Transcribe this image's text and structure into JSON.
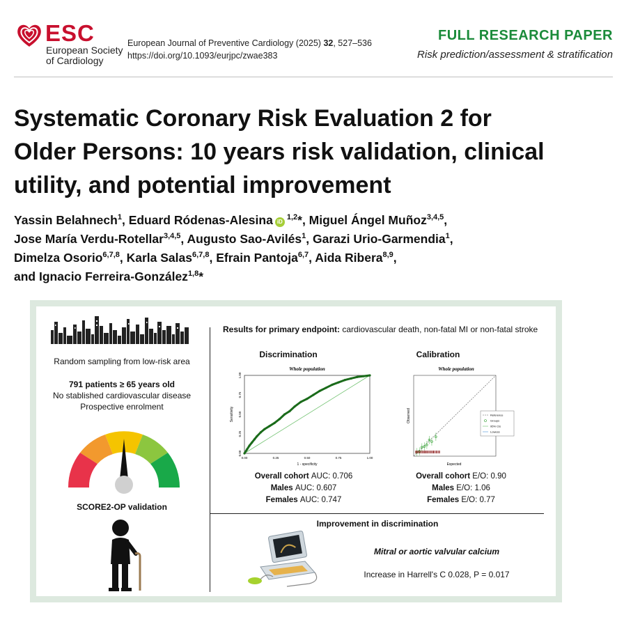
{
  "header": {
    "logo_text": "ESC",
    "logo_sub_1": "European Society",
    "logo_sub_2": "of Cardiology",
    "journal_name": "European Journal of Preventive Cardiology (2025)",
    "journal_volume": "32",
    "journal_pages": ", 527–536",
    "doi": "https://doi.org/10.1093/eurjpc/zwae383",
    "paper_type": "FULL RESEARCH PAPER",
    "paper_section": "Risk prediction/assessment & stratification"
  },
  "article": {
    "title_line_1": "Systematic Coronary Risk Evaluation 2 for",
    "title_line_2": "Older Persons: 10 years risk validation, clinical",
    "title_line_3": "utility, and potential improvement",
    "authors": [
      {
        "name": "Yassin Belahnech",
        "aff": "1",
        "sep": ", "
      },
      {
        "name": "Eduard Ródenas-Alesina",
        "aff": "1,2",
        "mark": "*",
        "orcid": true,
        "sep": ", "
      },
      {
        "name": "Miguel Ángel Muñoz",
        "aff": "3,4,5",
        "sep": ","
      },
      {
        "name": "Jose María Verdu-Rotellar",
        "aff": "3,4,5",
        "sep": ", "
      },
      {
        "name": "Augusto Sao-Avilés",
        "aff": "1",
        "sep": ", "
      },
      {
        "name": "Garazi Urio-Garmendia",
        "aff": "1",
        "sep": ","
      },
      {
        "name": "Dimelza Osorio",
        "aff": "6,7,8",
        "sep": ", "
      },
      {
        "name": "Karla Salas",
        "aff": "6,7,8",
        "sep": ", "
      },
      {
        "name": "Efrain Pantoja",
        "aff": "6,7",
        "sep": ", "
      },
      {
        "name": "Aida Ribera",
        "aff": "8,9",
        "sep": ","
      },
      {
        "name": "Ignacio Ferreira-González",
        "aff": "1,8",
        "mark": "*",
        "prefix": "and ",
        "sep": ""
      }
    ]
  },
  "abstract": {
    "sampling": "Random sampling from low-risk area",
    "patients": "791 patients ≥ 65 years old",
    "criteria_1": "No stablished cardiovascular disease",
    "criteria_2": "Prospective enrolment",
    "validation": "SCORE2-OP validation",
    "results_label": "Results for primary endpoint:",
    "results_text": " cardiovascular death, non-fatal MI or non-fatal stroke",
    "discrimination": {
      "title": "Discrimination",
      "subtitle": "Whole population",
      "ylabel": "Sensitivity",
      "xlabel": "1 - specificity",
      "ticks": [
        "0.00",
        "0.25",
        "0.50",
        "0.75",
        "1.00"
      ],
      "rows": [
        {
          "label": "Overall cohort",
          "value": "AUC: 0.706"
        },
        {
          "label": "Males",
          "value": "AUC: 0.607"
        },
        {
          "label": "Females",
          "value": "AUC: 0.747"
        }
      ]
    },
    "calibration": {
      "title": "Calibration",
      "subtitle": "Whole population",
      "ylabel": "Observed",
      "xlabel": "Expected",
      "legend": [
        "Reference",
        "Groups",
        "95% CIs",
        "Lowess"
      ],
      "rows": [
        {
          "label": "Overall cohort",
          "value": "E/O: 0.90"
        },
        {
          "label": "Males",
          "value": "E/O: 1.06"
        },
        {
          "label": "Females",
          "value": "E/O: 0.77"
        }
      ]
    },
    "improvement_title": "Improvement in discrimination",
    "improvement_marker": "Mitral or aortic valvular calcium",
    "improvement_value": "Increase in Harrell's C 0.028, P = 0.017"
  },
  "colors": {
    "esc_red": "#c8102e",
    "paper_green": "#1b8b3a",
    "roc_line": "#1a6b1a",
    "abstract_frame": "#dde9df"
  },
  "chart_data": [
    {
      "type": "line",
      "title": "Whole population",
      "xlabel": "1 - specificity",
      "ylabel": "Sensitivity",
      "xlim": [
        0,
        1
      ],
      "ylim": [
        0,
        1
      ],
      "series": [
        {
          "x": [
            0,
            0.02,
            0.04,
            0.06,
            0.08,
            0.1,
            0.13,
            0.16,
            0.2,
            0.24,
            0.28,
            0.32,
            0.36,
            0.4,
            0.45,
            0.5,
            0.55,
            0.6,
            0.65,
            0.7,
            0.75,
            0.8,
            0.85,
            0.9,
            0.95,
            1
          ],
          "y": [
            0,
            0.05,
            0.1,
            0.14,
            0.18,
            0.22,
            0.27,
            0.31,
            0.35,
            0.39,
            0.44,
            0.5,
            0.54,
            0.6,
            0.66,
            0.7,
            0.75,
            0.8,
            0.84,
            0.88,
            0.91,
            0.94,
            0.96,
            0.98,
            0.99,
            1
          ]
        },
        {
          "x": [
            0,
            1
          ],
          "y": [
            0,
            1
          ]
        }
      ]
    },
    {
      "type": "scatter",
      "title": "Whole population",
      "xlabel": "Expected",
      "ylabel": "Observed",
      "xlim": [
        0,
        1
      ],
      "ylim": [
        0,
        1
      ],
      "series": [
        {
          "name": "Groups",
          "x": [
            0.04,
            0.07,
            0.1,
            0.13,
            0.16,
            0.19,
            0.22,
            0.27
          ],
          "y": [
            0.05,
            0.06,
            0.11,
            0.12,
            0.14,
            0.2,
            0.18,
            0.24
          ]
        },
        {
          "name": "Reference",
          "x": [
            0,
            1
          ],
          "y": [
            0,
            1
          ]
        }
      ]
    }
  ]
}
